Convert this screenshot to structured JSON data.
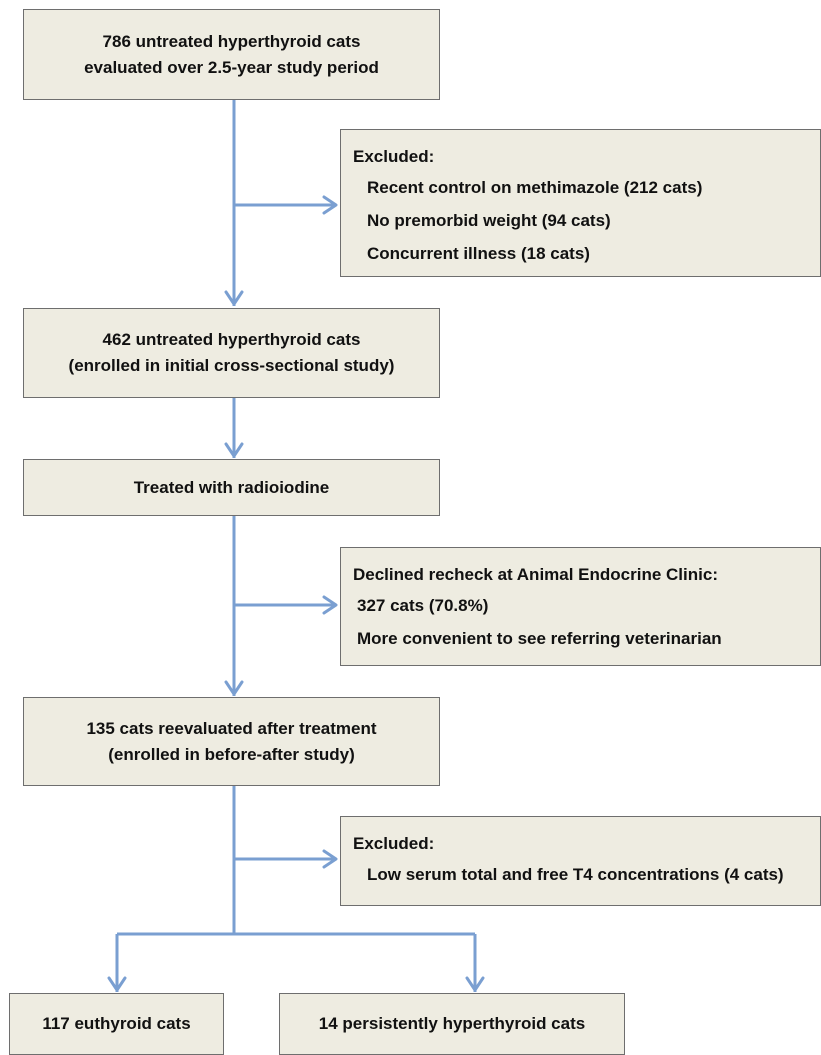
{
  "boxes": {
    "start": [
      "786 untreated hyperthyroid cats",
      "evaluated over 2.5-year study period"
    ],
    "enrolled": [
      "462 untreated hyperthyroid cats",
      "(enrolled in initial cross-sectional study)"
    ],
    "treated": "Treated with radioiodine",
    "reevaluated": [
      "135 cats reevaluated after treatment",
      "(enrolled in before-after study)"
    ],
    "euthyroid": "117 euthyroid cats",
    "hyperthyroid": "14 persistently hyperthyroid cats"
  },
  "side_boxes": {
    "excluded_1": {
      "heading": "Excluded:",
      "items": [
        "Recent control on methimazole (212 cats)",
        "No premorbid weight (94 cats)",
        "Concurrent illness (18 cats)"
      ]
    },
    "declined": {
      "heading": "Declined recheck at Animal Endocrine Clinic:",
      "items": [
        "327 cats (70.8%)",
        "More convenient to see referring veterinarian"
      ]
    },
    "excluded_2": {
      "heading": "Excluded:",
      "items": [
        "Low serum total and free T4 concentrations (4 cats)"
      ]
    }
  },
  "colors": {
    "connector": "#7a9fd1",
    "box_fill": "#eeece1",
    "box_border": "#6e6e6e"
  }
}
